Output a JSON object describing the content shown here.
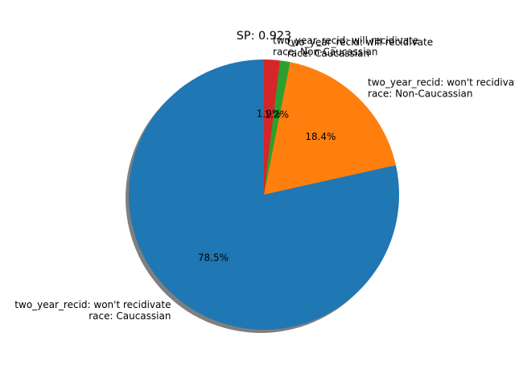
{
  "chart_data": {
    "type": "pie",
    "title": "SP: 0.923",
    "shadow": true,
    "start_angle_deg": 90,
    "direction": "counterclockwise",
    "slices": [
      {
        "label_line1": "two_year_recid: won't recidivate",
        "label_line2": "race: Caucassian",
        "percent_label": "78.5%",
        "value": 78.5,
        "color": "#1f77b4"
      },
      {
        "label_line1": "two_year_recid: won't recidivate",
        "label_line2": "race: Non-Caucassian",
        "percent_label": "18.4%",
        "value": 18.4,
        "color": "#ff7f0e"
      },
      {
        "label_line1": "two_year_recid: will recidivate",
        "label_line2": "race: Caucassian",
        "percent_label": "1.2%",
        "value": 1.2,
        "color": "#2ca02c"
      },
      {
        "label_line1": "two_year_recid: will recidivate",
        "label_line2": "race: Non-Caucassian",
        "percent_label": "1.9%",
        "value": 1.9,
        "color": "#d62728"
      }
    ]
  }
}
